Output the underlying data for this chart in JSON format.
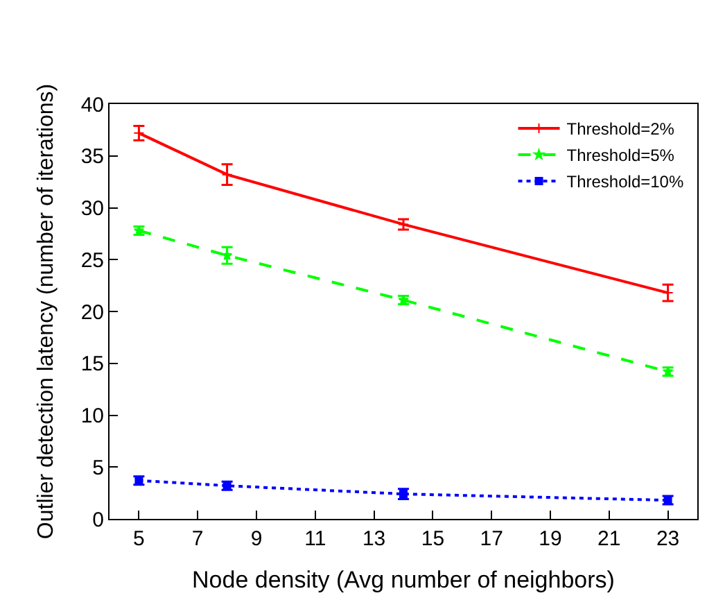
{
  "chart_data": {
    "type": "line",
    "xlabel": "Node density (Avg number of neighbors)",
    "ylabel": "Outlier detection latency (number of iterations)",
    "x": [
      5,
      8,
      14,
      23
    ],
    "xlim": [
      4,
      24
    ],
    "xticks": [
      5,
      7,
      9,
      11,
      13,
      15,
      17,
      19,
      21,
      23
    ],
    "ylim": [
      0,
      40
    ],
    "yticks": [
      0,
      5,
      10,
      15,
      20,
      25,
      30,
      35,
      40
    ],
    "legend": "top right",
    "series": [
      {
        "name": "Threshold=2%",
        "color": "#ff0000",
        "values": [
          37.2,
          33.2,
          28.4,
          21.8
        ],
        "errors": [
          0.7,
          1.0,
          0.5,
          0.8
        ],
        "marker": "cross",
        "line_style": "solid"
      },
      {
        "name": "Threshold=5%",
        "color": "#00ff00",
        "values": [
          27.8,
          25.4,
          21.1,
          14.2
        ],
        "errors": [
          0.4,
          0.8,
          0.4,
          0.4
        ],
        "marker": "star",
        "line_style": "dashed"
      },
      {
        "name": "Threshold=10%",
        "color": "#0000ff",
        "values": [
          3.7,
          3.2,
          2.4,
          1.8
        ],
        "errors": [
          0.4,
          0.4,
          0.5,
          0.4
        ],
        "marker": "square",
        "line_style": "dotted"
      }
    ]
  }
}
